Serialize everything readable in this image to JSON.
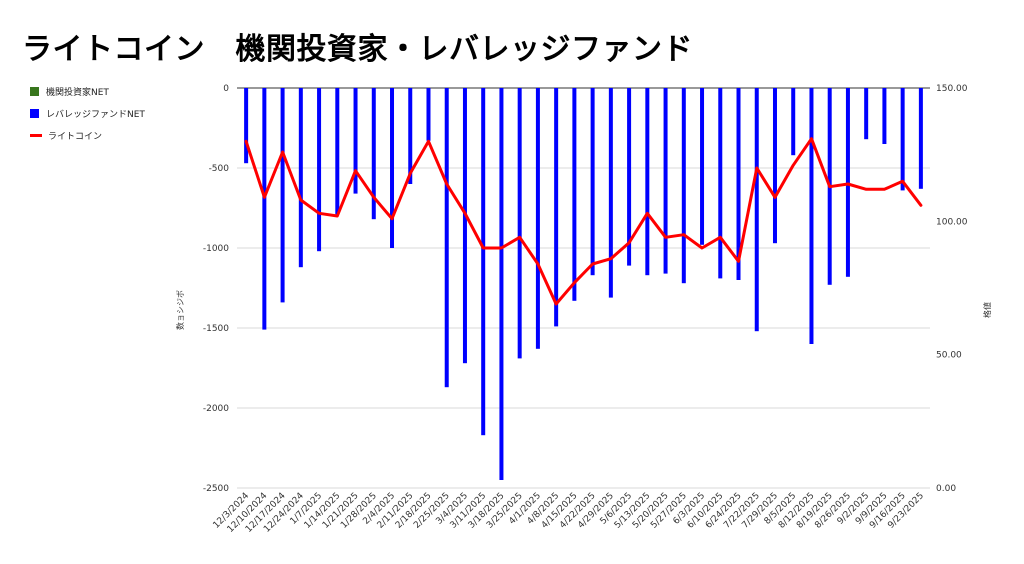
{
  "title": "ライトコイン　機関投資家・レバレッジファンド",
  "legend": {
    "items": [
      {
        "label": "機関投資家NET",
        "color": "#38761d"
      },
      {
        "label": "レバレッジファンドNET",
        "color": "#0000ff"
      },
      {
        "label": "ライトコイン",
        "color": "#ff0000"
      }
    ]
  },
  "chart_data": {
    "type": "bar",
    "title": "ライトコイン　機関投資家・レバレッジファンド",
    "ylabel": "数ョシジボ",
    "y2label": "格値",
    "ylim": [
      -2500,
      0
    ],
    "y2lim": [
      0,
      150
    ],
    "yticks": [
      "0",
      "-500",
      "-1000",
      "-1500",
      "-2000",
      "-2500"
    ],
    "y2ticks": [
      "150.00",
      "100.00",
      "50.00",
      "0.00"
    ],
    "grid": true,
    "legend_position": "left",
    "categories": [
      "12/3/2024",
      "12/10/2024",
      "12/17/2024",
      "12/24/2024",
      "1/7/2025",
      "1/14/2025",
      "1/21/2025",
      "1/28/2025",
      "2/4/2025",
      "2/11/2025",
      "2/18/2025",
      "2/25/2025",
      "3/4/2025",
      "3/11/2025",
      "3/18/2025",
      "3/25/2025",
      "4/1/2025",
      "4/8/2025",
      "4/15/2025",
      "4/22/2025",
      "4/29/2025",
      "5/6/2025",
      "5/13/2025",
      "5/20/2025",
      "5/27/2025",
      "6/3/2025",
      "6/10/2025",
      "6/24/2025",
      "7/22/2025",
      "7/29/2025",
      "8/5/2025",
      "8/12/2025",
      "8/19/2025",
      "8/26/2025",
      "9/2/2025",
      "9/9/2025",
      "9/16/2025",
      "9/23/2025"
    ],
    "series": [
      {
        "name": "機関投資家NET",
        "type": "bar",
        "axis": "left",
        "color": "#38761d",
        "values": [
          0,
          0,
          0,
          0,
          0,
          0,
          0,
          0,
          0,
          0,
          0,
          0,
          0,
          0,
          0,
          0,
          0,
          0,
          0,
          0,
          0,
          0,
          0,
          0,
          0,
          0,
          0,
          0,
          0,
          0,
          0,
          0,
          0,
          0,
          0,
          0,
          0,
          0
        ]
      },
      {
        "name": "レバレッジファンドNET",
        "type": "bar",
        "axis": "left",
        "color": "#0000ff",
        "values": [
          -470,
          -1510,
          -1340,
          -1120,
          -1020,
          -790,
          -660,
          -820,
          -1000,
          -600,
          -330,
          -1870,
          -1720,
          -2170,
          -2450,
          -1690,
          -1630,
          -1490,
          -1330,
          -1170,
          -1310,
          -1110,
          -1170,
          -1160,
          -1220,
          -980,
          -1190,
          -1200,
          -1520,
          -970,
          -420,
          -1600,
          -1230,
          -1180,
          -320,
          -350,
          -640,
          -630
        ]
      },
      {
        "name": "ライトコイン",
        "type": "line",
        "axis": "right",
        "color": "#ff0000",
        "values": [
          130,
          109,
          126,
          108,
          103,
          102,
          119,
          109,
          101,
          118,
          130,
          114,
          103,
          90,
          90,
          94,
          84,
          69,
          77,
          84,
          86,
          92,
          103,
          94,
          95,
          90,
          94,
          85,
          120,
          109,
          121,
          131,
          113,
          114,
          112,
          112,
          115,
          106
        ]
      }
    ]
  }
}
